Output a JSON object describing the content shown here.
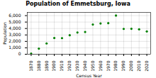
{
  "chart_data": {
    "type": "scatter",
    "title": "Population of Emmetsburg, Iowa",
    "xlabel": "Census Year",
    "ylabel": "Population",
    "x": [
      1870,
      1880,
      1890,
      1900,
      1910,
      1920,
      1930,
      1940,
      1950,
      1960,
      1970,
      1980,
      1990,
      2000,
      2010,
      2020
    ],
    "values": [
      93,
      878,
      1679,
      2527,
      2507,
      2957,
      3374,
      3466,
      4624,
      4780,
      4831,
      6007,
      3938,
      3958,
      3877,
      3546
    ],
    "color": "#008000",
    "xlim": [
      1865,
      2025
    ],
    "xticks": [
      1870,
      1880,
      1890,
      1900,
      1910,
      1920,
      1930,
      1940,
      1950,
      1960,
      1970,
      1980,
      1990,
      2000,
      2010,
      2020
    ],
    "ylim": [
      0,
      6500
    ],
    "yticks": [
      0,
      {
        "value": 1000,
        "label": "1,000"
      },
      {
        "value": 2000,
        "label": "2,000"
      },
      {
        "value": 3000,
        "label": "3,000"
      },
      {
        "value": 4000,
        "label": "4,000"
      },
      {
        "value": 5000,
        "label": "5,000"
      },
      {
        "value": 6000,
        "label": "6,000"
      }
    ],
    "grid": true
  }
}
